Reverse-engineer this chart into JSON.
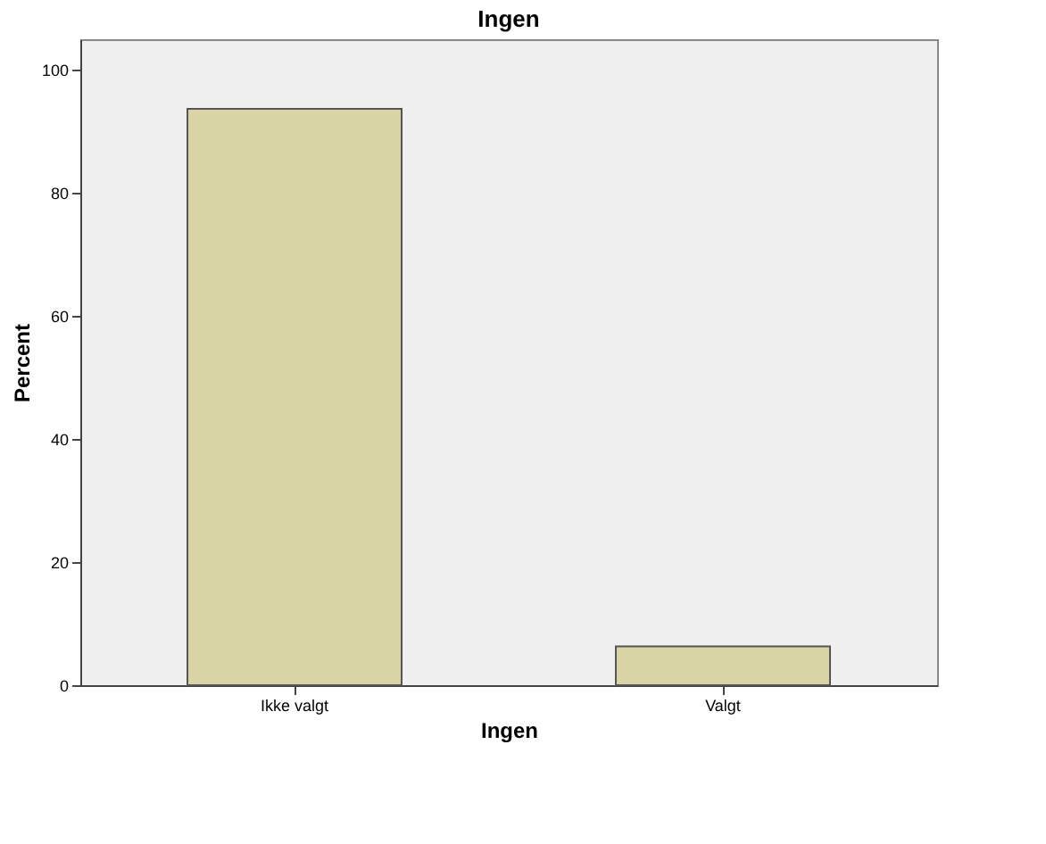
{
  "chart_data": {
    "type": "bar",
    "title": "Ingen",
    "xlabel": "Ingen",
    "ylabel": "Percent",
    "categories": [
      "Ikke valgt",
      "Valgt"
    ],
    "values": [
      93.7,
      6.3
    ],
    "color": "#d8d4a6",
    "ylim": [
      0,
      105
    ],
    "yticks": [
      0,
      20,
      40,
      60,
      80,
      100
    ],
    "grid": false
  }
}
